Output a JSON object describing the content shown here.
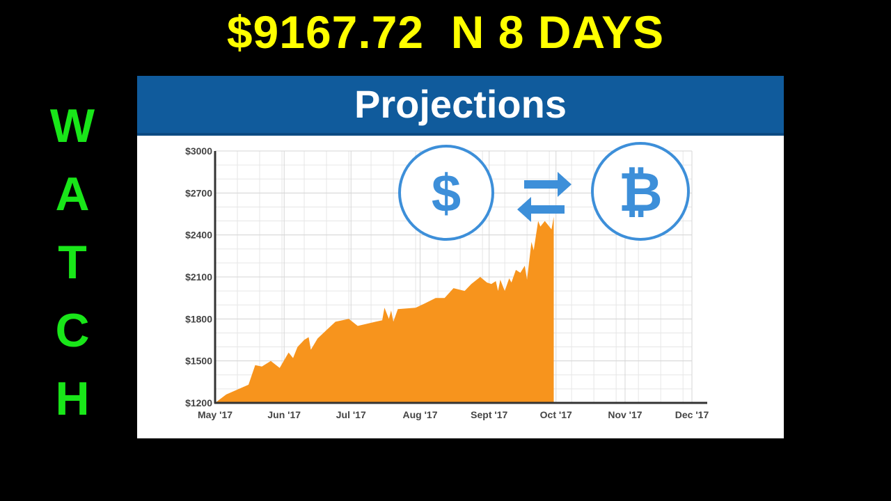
{
  "headline": "$9167.72  N 8 DAYS",
  "side_word": [
    "W",
    "A",
    "T",
    "C",
    "H"
  ],
  "colors": {
    "background": "#000000",
    "headline": "#ffff00",
    "side_word": "#19e619",
    "panel_header": "#105b9c",
    "area": "#f7941d",
    "icon": "#3d8fd9",
    "axis": "#333333",
    "grid": "#e6e6e6"
  },
  "icons": {
    "left_circle": "dollar-icon",
    "arrows": "exchange-arrows-icon",
    "right_circle": "bitcoin-icon",
    "dollar_glyph": "$",
    "bitcoin_glyph": "₿"
  },
  "chart_data": {
    "type": "area",
    "title": "Projections",
    "xlabel": "",
    "ylabel": "",
    "grid": true,
    "ylim": [
      1200,
      3000
    ],
    "xlim": [
      "2017-05-01",
      "2017-12-01"
    ],
    "y_ticks": [
      1200,
      1500,
      1800,
      2100,
      2400,
      2700,
      3000
    ],
    "y_tick_labels": [
      "$1200",
      "$1500",
      "$1800",
      "$2100",
      "$2400",
      "$2700",
      "$3000"
    ],
    "x_ticks": [
      "2017-05-01",
      "2017-06-01",
      "2017-07-01",
      "2017-08-01",
      "2017-09-01",
      "2017-10-01",
      "2017-11-01",
      "2017-12-01"
    ],
    "x_tick_labels": [
      "May '17",
      "Jun '17",
      "Jul '17",
      "Aug '17",
      "Sept '17",
      "Oct '17",
      "Nov '17",
      "Dec '17"
    ],
    "series": [
      {
        "name": "",
        "x": [
          "2017-05-01",
          "2017-05-06",
          "2017-05-16",
          "2017-05-19",
          "2017-05-22",
          "2017-05-26",
          "2017-05-30",
          "2017-06-03",
          "2017-06-05",
          "2017-06-07",
          "2017-06-10",
          "2017-06-12",
          "2017-06-13",
          "2017-06-16",
          "2017-06-20",
          "2017-06-24",
          "2017-06-30",
          "2017-07-04",
          "2017-07-12",
          "2017-07-15",
          "2017-07-16",
          "2017-07-18",
          "2017-07-19",
          "2017-07-20",
          "2017-07-22",
          "2017-07-30",
          "2017-08-03",
          "2017-08-08",
          "2017-08-12",
          "2017-08-16",
          "2017-08-21",
          "2017-08-24",
          "2017-08-28",
          "2017-08-31",
          "2017-09-02",
          "2017-09-04",
          "2017-09-05",
          "2017-09-06",
          "2017-09-08",
          "2017-09-10",
          "2017-09-11",
          "2017-09-13",
          "2017-09-15",
          "2017-09-17",
          "2017-09-18",
          "2017-09-20",
          "2017-09-21",
          "2017-09-23",
          "2017-09-24",
          "2017-09-26",
          "2017-09-29",
          "2017-09-30"
        ],
        "y": [
          1200,
          1260,
          1330,
          1470,
          1460,
          1500,
          1450,
          1560,
          1520,
          1600,
          1650,
          1670,
          1580,
          1660,
          1720,
          1780,
          1800,
          1750,
          1780,
          1790,
          1880,
          1800,
          1860,
          1780,
          1870,
          1880,
          1910,
          1950,
          1950,
          2020,
          2000,
          2050,
          2100,
          2060,
          2050,
          2070,
          2000,
          2080,
          2000,
          2090,
          2060,
          2150,
          2130,
          2180,
          2080,
          2350,
          2290,
          2500,
          2460,
          2500,
          2440,
          2530
        ]
      }
    ]
  }
}
